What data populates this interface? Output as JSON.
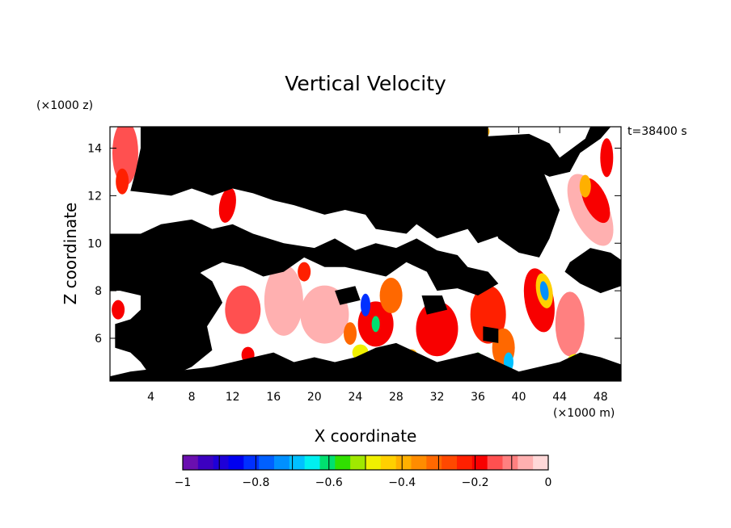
{
  "chart_data": {
    "type": "heatmap",
    "title": "Vertical Velocity",
    "xlabel": "X coordinate",
    "ylabel": "Z coordinate",
    "x_unit_label": "(×1000 m)",
    "y_unit_label": "(×1000 z)",
    "time_label": "t=38400 s",
    "xlim": [
      0,
      50
    ],
    "ylim": [
      4.2,
      14.9
    ],
    "x_ticks": [
      4,
      8,
      12,
      16,
      20,
      24,
      28,
      32,
      36,
      40,
      44,
      48
    ],
    "y_ticks": [
      6,
      8,
      10,
      12,
      14
    ],
    "colorbar": {
      "min": -1,
      "max": 0,
      "tick_values": [
        -1,
        -0.8,
        -0.6,
        -0.4,
        -0.2,
        0
      ],
      "tick_labels": [
        "−1",
        "−0.8",
        "−0.6",
        "−0.4",
        "−0.2",
        "0"
      ],
      "colors": [
        "#6a0fb0",
        "#3c00c0",
        "#1e00d8",
        "#0000f0",
        "#0030ff",
        "#0060ff",
        "#0090ff",
        "#00c0ff",
        "#00f0f0",
        "#00e070",
        "#30e000",
        "#a0e800",
        "#f0f000",
        "#ffd000",
        "#ffb000",
        "#ff8c00",
        "#ff6800",
        "#ff4800",
        "#ff2000",
        "#f80000",
        "#ff5050",
        "#ff8080",
        "#ffb0b0",
        "#ffd8d8"
      ]
    },
    "missing_value_color": "#000000",
    "zero_color": "#ffffff"
  }
}
